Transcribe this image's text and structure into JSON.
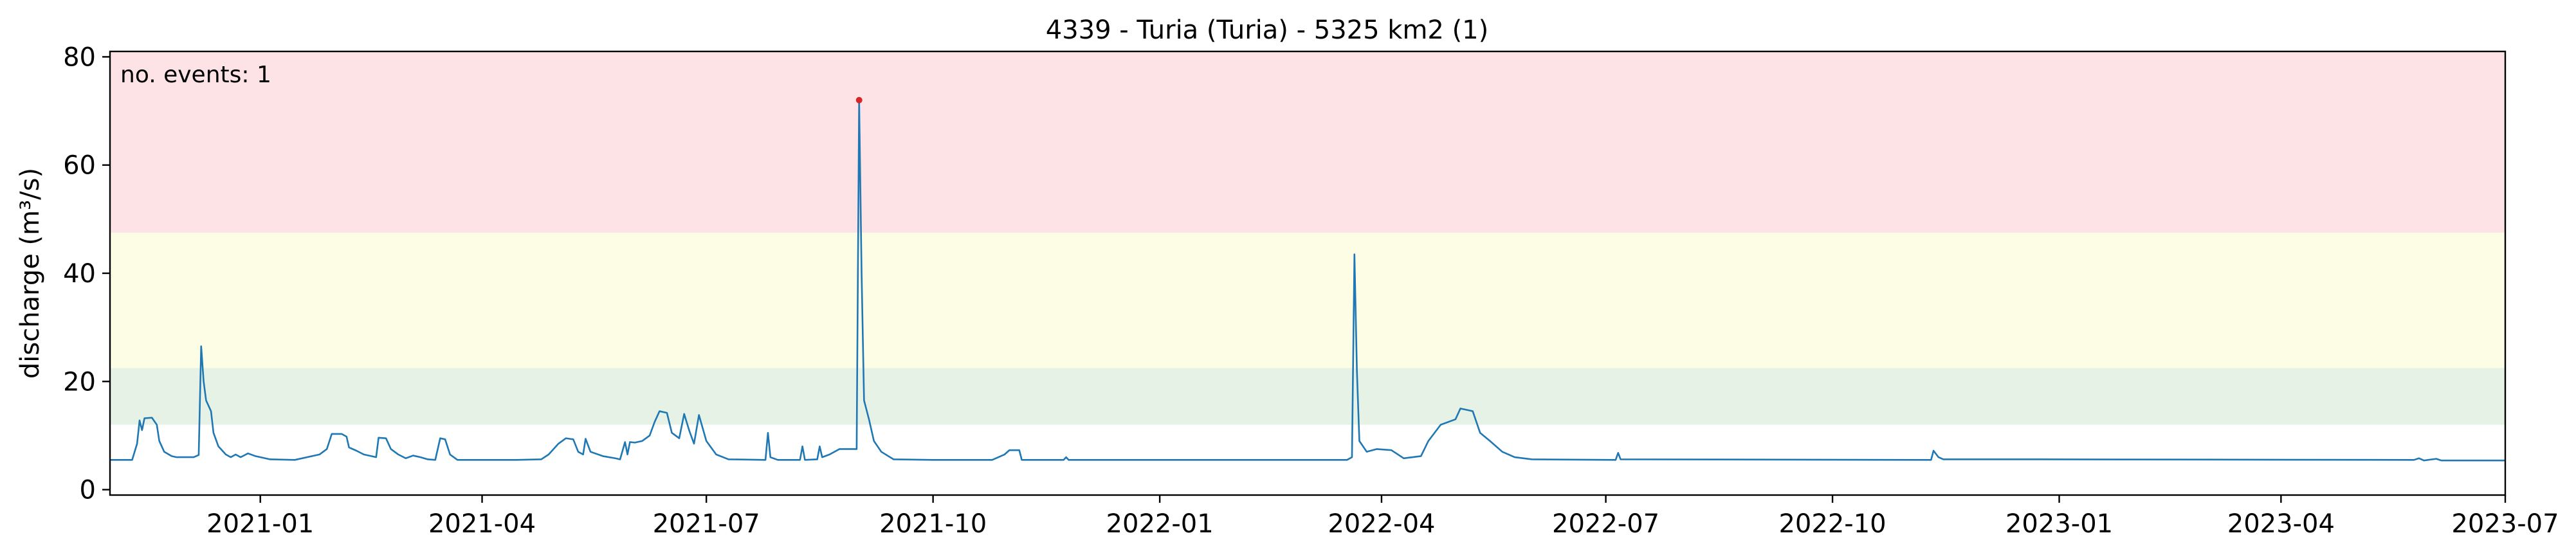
{
  "chart_data": {
    "type": "line",
    "title": "4339 - Turia (Turia) - 5325 km2 (1)",
    "xlabel": "",
    "ylabel": "discharge (m³/s)",
    "ylim": [
      -1,
      81
    ],
    "xlim": [
      "2020-11-01",
      "2023-07-01"
    ],
    "y_ticks": [
      0,
      20,
      40,
      60,
      80
    ],
    "x_ticks": [
      "2021-01",
      "2021-04",
      "2021-07",
      "2021-10",
      "2022-01",
      "2022-04",
      "2022-07",
      "2022-10",
      "2023-01",
      "2023-04",
      "2023-07"
    ],
    "grid": false,
    "legend": "none",
    "threshold_bands": [
      {
        "from": 12,
        "to": 22.5,
        "color": "#e5f2e5"
      },
      {
        "from": 22.5,
        "to": 47.5,
        "color": "#fdfde6"
      },
      {
        "from": 47.5,
        "to": 81,
        "color": "#fde3e6"
      }
    ],
    "annotation": {
      "text": "no. events: 1",
      "color": "#d62728"
    },
    "events": [
      {
        "x": "2021-09-01",
        "y": 72
      }
    ],
    "series": [
      {
        "color": "#1f77b4",
        "event_color": "#d62728",
        "points": [
          [
            "2020-11-01",
            5.5
          ],
          [
            "2020-11-10",
            5.5
          ],
          [
            "2020-11-12",
            8.5
          ],
          [
            "2020-11-13",
            12.8
          ],
          [
            "2020-11-14",
            11.0
          ],
          [
            "2020-11-15",
            13.2
          ],
          [
            "2020-11-18",
            13.3
          ],
          [
            "2020-11-20",
            12.0
          ],
          [
            "2020-11-21",
            9.0
          ],
          [
            "2020-11-23",
            7.0
          ],
          [
            "2020-11-26",
            6.2
          ],
          [
            "2020-11-28",
            6.0
          ],
          [
            "2020-12-05",
            6.0
          ],
          [
            "2020-12-07",
            6.4
          ],
          [
            "2020-12-08",
            26.5
          ],
          [
            "2020-12-09",
            20.0
          ],
          [
            "2020-12-10",
            16.5
          ],
          [
            "2020-12-12",
            14.5
          ],
          [
            "2020-12-13",
            10.5
          ],
          [
            "2020-12-15",
            8.0
          ],
          [
            "2020-12-18",
            6.5
          ],
          [
            "2020-12-20",
            6.0
          ],
          [
            "2020-12-22",
            6.5
          ],
          [
            "2020-12-24",
            6.0
          ],
          [
            "2020-12-27",
            6.7
          ],
          [
            "2020-12-30",
            6.2
          ],
          [
            "2021-01-05",
            5.6
          ],
          [
            "2021-01-15",
            5.5
          ],
          [
            "2021-01-25",
            6.5
          ],
          [
            "2021-01-28",
            7.5
          ],
          [
            "2021-01-30",
            10.3
          ],
          [
            "2021-02-03",
            10.3
          ],
          [
            "2021-02-05",
            9.8
          ],
          [
            "2021-02-06",
            7.8
          ],
          [
            "2021-02-09",
            7.2
          ],
          [
            "2021-02-12",
            6.5
          ],
          [
            "2021-02-15",
            6.2
          ],
          [
            "2021-02-17",
            6.0
          ],
          [
            "2021-02-18",
            9.6
          ],
          [
            "2021-02-21",
            9.5
          ],
          [
            "2021-02-23",
            7.5
          ],
          [
            "2021-02-26",
            6.5
          ],
          [
            "2021-03-01",
            5.8
          ],
          [
            "2021-03-04",
            6.3
          ],
          [
            "2021-03-07",
            6.0
          ],
          [
            "2021-03-10",
            5.6
          ],
          [
            "2021-03-13",
            5.5
          ],
          [
            "2021-03-15",
            9.5
          ],
          [
            "2021-03-17",
            9.3
          ],
          [
            "2021-03-19",
            6.5
          ],
          [
            "2021-03-22",
            5.5
          ],
          [
            "2021-04-15",
            5.5
          ],
          [
            "2021-04-25",
            5.6
          ],
          [
            "2021-04-28",
            6.5
          ],
          [
            "2021-05-02",
            8.5
          ],
          [
            "2021-05-05",
            9.5
          ],
          [
            "2021-05-08",
            9.3
          ],
          [
            "2021-05-10",
            7.0
          ],
          [
            "2021-05-12",
            6.5
          ],
          [
            "2021-05-13",
            9.4
          ],
          [
            "2021-05-15",
            7.0
          ],
          [
            "2021-05-20",
            6.2
          ],
          [
            "2021-05-25",
            5.8
          ],
          [
            "2021-05-27",
            5.6
          ],
          [
            "2021-05-29",
            8.8
          ],
          [
            "2021-05-30",
            6.5
          ],
          [
            "2021-05-31",
            8.8
          ],
          [
            "2021-06-02",
            8.7
          ],
          [
            "2021-06-05",
            9.0
          ],
          [
            "2021-06-08",
            10.0
          ],
          [
            "2021-06-10",
            12.5
          ],
          [
            "2021-06-12",
            14.5
          ],
          [
            "2021-06-15",
            14.2
          ],
          [
            "2021-06-17",
            10.5
          ],
          [
            "2021-06-20",
            9.5
          ],
          [
            "2021-06-22",
            14.0
          ],
          [
            "2021-06-24",
            11.0
          ],
          [
            "2021-06-26",
            8.5
          ],
          [
            "2021-06-28",
            13.8
          ],
          [
            "2021-07-01",
            9.0
          ],
          [
            "2021-07-05",
            6.5
          ],
          [
            "2021-07-10",
            5.6
          ],
          [
            "2021-07-25",
            5.5
          ],
          [
            "2021-07-26",
            10.5
          ],
          [
            "2021-07-27",
            6.0
          ],
          [
            "2021-07-30",
            5.5
          ],
          [
            "2021-08-08",
            5.5
          ],
          [
            "2021-08-09",
            8.0
          ],
          [
            "2021-08-10",
            5.5
          ],
          [
            "2021-08-15",
            5.6
          ],
          [
            "2021-08-16",
            8.0
          ],
          [
            "2021-08-17",
            6.0
          ],
          [
            "2021-08-20",
            6.5
          ],
          [
            "2021-08-24",
            7.5
          ],
          [
            "2021-08-31",
            7.5
          ],
          [
            "2021-09-01",
            72.0
          ],
          [
            "2021-09-02",
            40.0
          ],
          [
            "2021-09-03",
            16.5
          ],
          [
            "2021-09-05",
            13.0
          ],
          [
            "2021-09-07",
            9.0
          ],
          [
            "2021-09-10",
            7.0
          ],
          [
            "2021-09-15",
            5.6
          ],
          [
            "2021-10-01",
            5.5
          ],
          [
            "2021-10-25",
            5.5
          ],
          [
            "2021-10-30",
            6.5
          ],
          [
            "2021-11-01",
            7.3
          ],
          [
            "2021-11-05",
            7.3
          ],
          [
            "2021-11-06",
            5.5
          ],
          [
            "2021-11-23",
            5.5
          ],
          [
            "2021-11-24",
            6.0
          ],
          [
            "2021-11-25",
            5.5
          ],
          [
            "2022-03-18",
            5.5
          ],
          [
            "2022-03-20",
            6.0
          ],
          [
            "2022-03-21",
            43.5
          ],
          [
            "2022-03-22",
            22.0
          ],
          [
            "2022-03-23",
            9.0
          ],
          [
            "2022-03-26",
            7.0
          ],
          [
            "2022-03-30",
            7.5
          ],
          [
            "2022-04-05",
            7.3
          ],
          [
            "2022-04-10",
            5.8
          ],
          [
            "2022-04-17",
            6.2
          ],
          [
            "2022-04-20",
            9.0
          ],
          [
            "2022-04-25",
            12.0
          ],
          [
            "2022-05-01",
            13.0
          ],
          [
            "2022-05-03",
            15.0
          ],
          [
            "2022-05-08",
            14.5
          ],
          [
            "2022-05-11",
            10.5
          ],
          [
            "2022-05-15",
            9.0
          ],
          [
            "2022-05-20",
            7.0
          ],
          [
            "2022-05-25",
            6.0
          ],
          [
            "2022-06-01",
            5.6
          ],
          [
            "2022-07-05",
            5.5
          ],
          [
            "2022-07-06",
            6.8
          ],
          [
            "2022-07-07",
            5.6
          ],
          [
            "2022-11-10",
            5.5
          ],
          [
            "2022-11-11",
            7.2
          ],
          [
            "2022-11-13",
            6.0
          ],
          [
            "2022-11-15",
            5.6
          ],
          [
            "2022-12-25",
            5.6
          ],
          [
            "2023-05-25",
            5.5
          ],
          [
            "2023-05-27",
            5.8
          ],
          [
            "2023-05-29",
            5.4
          ],
          [
            "2023-06-03",
            5.7
          ],
          [
            "2023-06-05",
            5.4
          ],
          [
            "2023-07-01",
            5.4
          ]
        ]
      }
    ]
  }
}
